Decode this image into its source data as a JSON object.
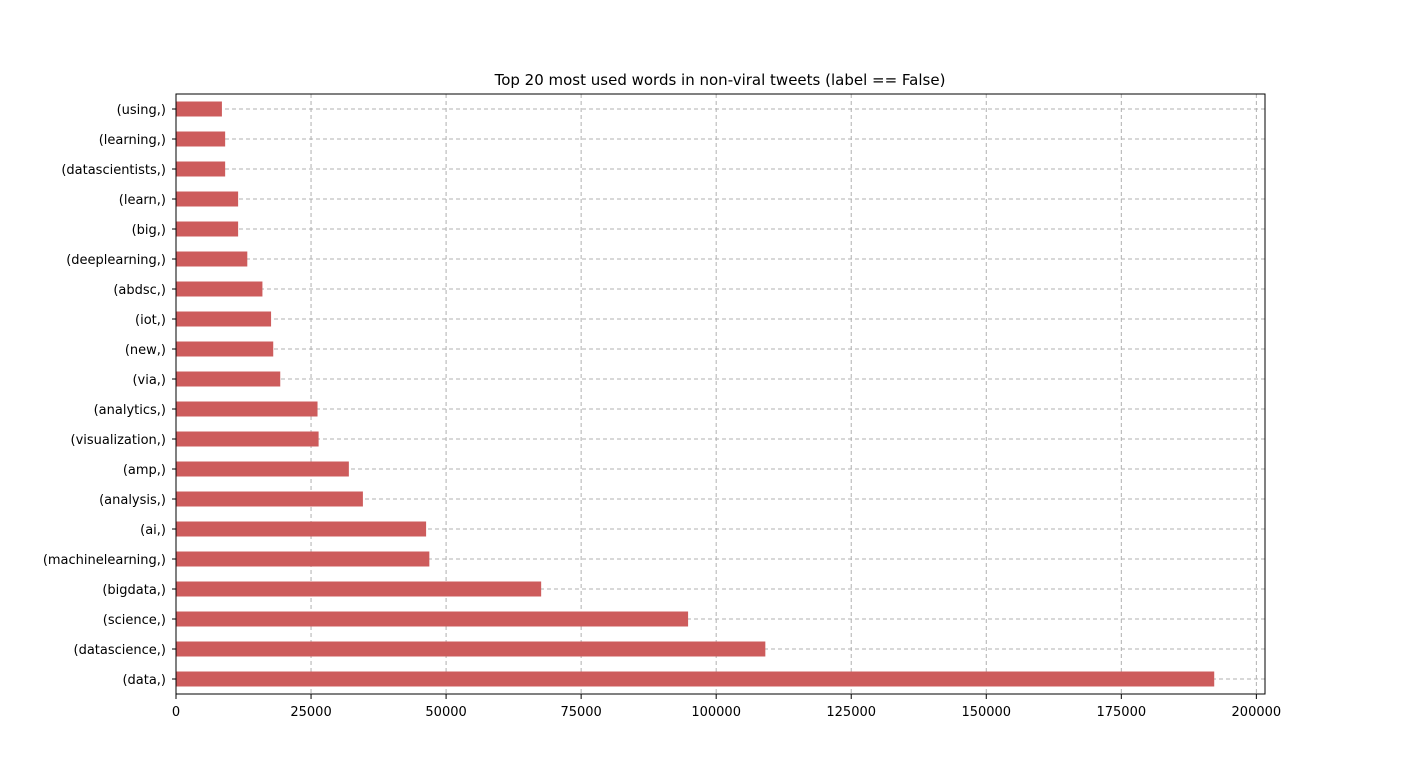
{
  "chart_data": {
    "type": "bar",
    "orientation": "horizontal",
    "title": "Top 20 most used words in non-viral tweets (label == False)",
    "xlabel": "",
    "ylabel": "",
    "categories": [
      "(data,)",
      "(datascience,)",
      "(science,)",
      "(bigdata,)",
      "(machinelearning,)",
      "(ai,)",
      "(analysis,)",
      "(amp,)",
      "(visualization,)",
      "(analytics,)",
      "(via,)",
      "(new,)",
      "(iot,)",
      "(abdsc,)",
      "(deeplearning,)",
      "(big,)",
      "(learn,)",
      "(datascientists,)",
      "(learning,)",
      "(using,)"
    ],
    "values": [
      192200,
      109100,
      94800,
      67600,
      46900,
      46300,
      34600,
      32000,
      26400,
      26200,
      19300,
      18000,
      17600,
      16000,
      13200,
      11500,
      11500,
      9100,
      9100,
      8500
    ],
    "xlim": [
      0,
      201600
    ],
    "xticks": [
      0,
      25000,
      50000,
      75000,
      100000,
      125000,
      150000,
      175000,
      200000
    ],
    "grid": true,
    "bar_color": "#cd5c5c"
  }
}
